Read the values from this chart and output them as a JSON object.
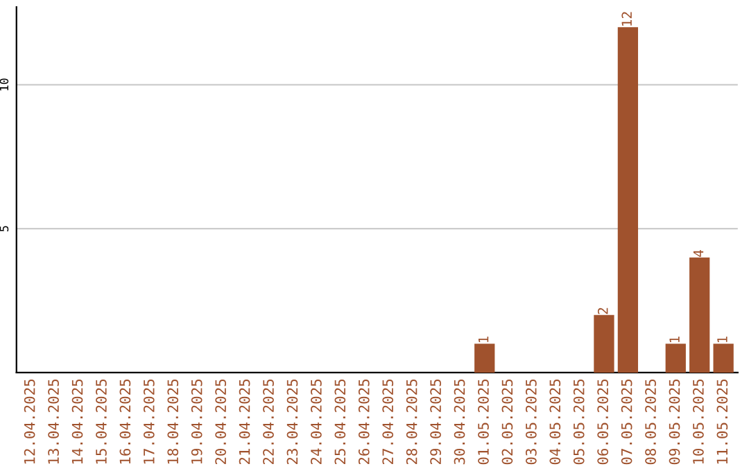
{
  "chart_data": {
    "type": "bar",
    "categories": [
      "12.04.2025",
      "13.04.2025",
      "14.04.2025",
      "15.04.2025",
      "16.04.2025",
      "17.04.2025",
      "18.04.2025",
      "19.04.2025",
      "20.04.2025",
      "21.04.2025",
      "22.04.2025",
      "23.04.2025",
      "24.04.2025",
      "25.04.2025",
      "26.04.2025",
      "27.04.2025",
      "28.04.2025",
      "29.04.2025",
      "30.04.2025",
      "01.05.2025",
      "02.05.2025",
      "03.05.2025",
      "04.05.2025",
      "05.05.2025",
      "06.05.2025",
      "07.05.2025",
      "08.05.2025",
      "09.05.2025",
      "10.05.2025",
      "11.05.2025"
    ],
    "values": [
      0,
      0,
      0,
      0,
      0,
      0,
      0,
      0,
      0,
      0,
      0,
      0,
      0,
      0,
      0,
      0,
      0,
      0,
      0,
      1,
      0,
      0,
      0,
      0,
      2,
      12,
      0,
      1,
      4,
      1
    ],
    "value_labels": [
      null,
      null,
      null,
      null,
      null,
      null,
      null,
      null,
      null,
      null,
      null,
      null,
      null,
      null,
      null,
      null,
      null,
      null,
      null,
      "1",
      null,
      null,
      null,
      null,
      "2",
      "12",
      null,
      "1",
      "4",
      "1"
    ],
    "color": "#a0522d",
    "ylim": [
      0,
      12.7
    ],
    "yticks": [
      5,
      10
    ],
    "grid": "y"
  }
}
